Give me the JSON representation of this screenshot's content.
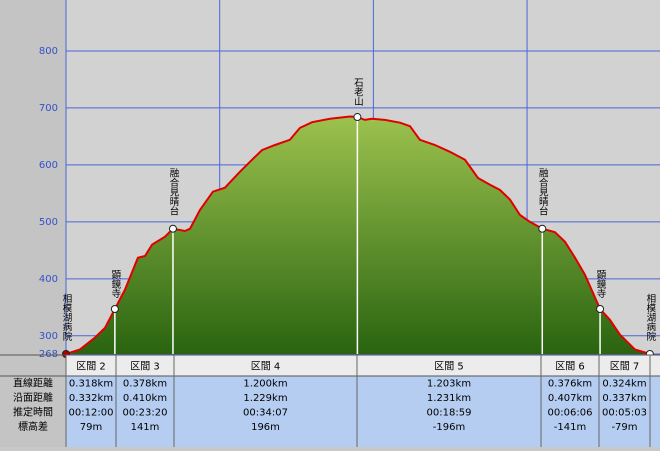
{
  "chart_data": {
    "type": "area",
    "color": "#e00000",
    "fill": [
      "#9cc24e",
      "#2a6410"
    ],
    "grid_color": "#4a66d8",
    "tick_color": "#3352c8",
    "xlim": [
      0,
      3.865
    ],
    "ylim": [
      268,
      889.5
    ],
    "xticks": [
      0,
      1,
      2,
      3
    ],
    "yticks": [
      268,
      300,
      400,
      500,
      600,
      700,
      800
    ],
    "x": [
      0,
      0.091,
      0.189,
      0.254,
      0.318,
      0.384,
      0.468,
      0.514,
      0.56,
      0.644,
      0.696,
      0.774,
      0.807,
      0.872,
      0.956,
      1.034,
      1.132,
      1.21,
      1.275,
      1.36,
      1.457,
      1.522,
      1.601,
      1.718,
      1.783,
      1.848,
      1.896,
      1.945,
      1.991,
      2.075,
      2.173,
      2.238,
      2.303,
      2.401,
      2.498,
      2.596,
      2.681,
      2.759,
      2.824,
      2.889,
      2.954,
      3.019,
      3.099,
      3.181,
      3.247,
      3.312,
      3.377,
      3.475,
      3.539,
      3.604,
      3.702,
      3.799
    ],
    "values": [
      268,
      276,
      297,
      314,
      347,
      381,
      437,
      440,
      460,
      474,
      488,
      484,
      488,
      521,
      553,
      560,
      588,
      609,
      626,
      635,
      644,
      665,
      675,
      681,
      683,
      685,
      684,
      679,
      681,
      679,
      674,
      668,
      644,
      635,
      623,
      609,
      577,
      565,
      556,
      539,
      512,
      500,
      488,
      482,
      465,
      437,
      407,
      347,
      328,
      302,
      276,
      268
    ],
    "waypoints": [
      {
        "label": "相模湖病院",
        "x": 0,
        "y": 268,
        "color": "#b00000"
      },
      {
        "label": "顕鏡寺",
        "x": 0.318,
        "y": 347,
        "color": "#ffffff"
      },
      {
        "label": "融合見晴台",
        "x": 0.696,
        "y": 488,
        "color": "#ffffff"
      },
      {
        "label": "石老山",
        "x": 1.896,
        "y": 684,
        "color": "#ffffff"
      },
      {
        "label": "融合見晴台",
        "x": 3.099,
        "y": 488,
        "color": "#ffffff"
      },
      {
        "label": "顕鏡寺",
        "x": 3.475,
        "y": 347,
        "color": "#ffffff"
      },
      {
        "label": "相模湖病院",
        "x": 3.799,
        "y": 268,
        "color": "#ffffff"
      }
    ]
  },
  "table": {
    "header": [
      "区間 2",
      "区間 3",
      "区間 4",
      "区間 5",
      "区間 6",
      "区間 7"
    ],
    "rows": [
      {
        "label": "直線距離",
        "cells": [
          "0.318km",
          "0.378km",
          "1.200km",
          "1.203km",
          "0.376km",
          "0.324km"
        ]
      },
      {
        "label": "沿面距離",
        "cells": [
          "0.332km",
          "0.410km",
          "1.229km",
          "1.231km",
          "0.407km",
          "0.337km"
        ]
      },
      {
        "label": "推定時間",
        "cells": [
          "00:12:00",
          "00:23:20",
          "00:34:07",
          "00:18:59",
          "00:06:06",
          "00:05:03"
        ]
      },
      {
        "label": "標高差",
        "cells": [
          "79m",
          "141m",
          "196m",
          "-196m",
          "-141m",
          "-79m"
        ]
      }
    ]
  }
}
